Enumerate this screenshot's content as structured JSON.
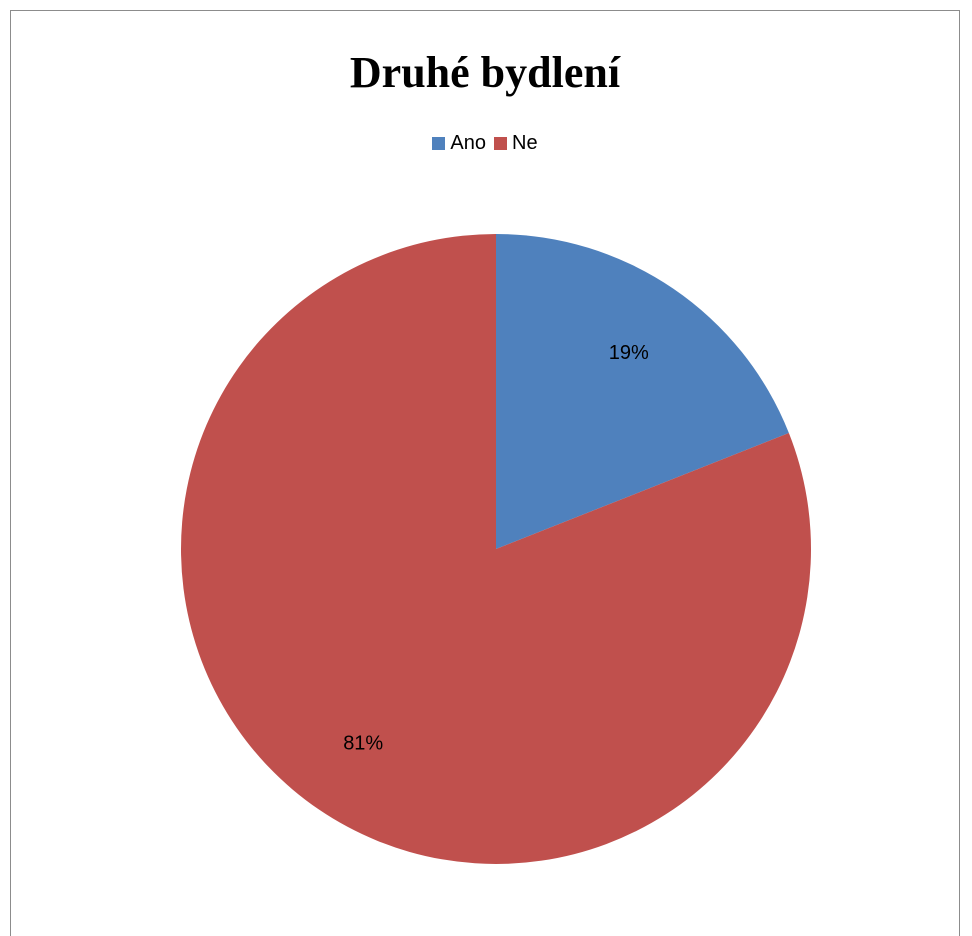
{
  "chart_data": {
    "type": "pie",
    "title": "Druhé bydlení",
    "categories": [
      "Ano",
      "Ne"
    ],
    "values": [
      19,
      81
    ],
    "data_labels": [
      "19%",
      "81%"
    ],
    "colors": [
      "#4f81bd",
      "#c0504d"
    ],
    "legend_position": "top",
    "start_angle": "12 o'clock, clockwise"
  }
}
